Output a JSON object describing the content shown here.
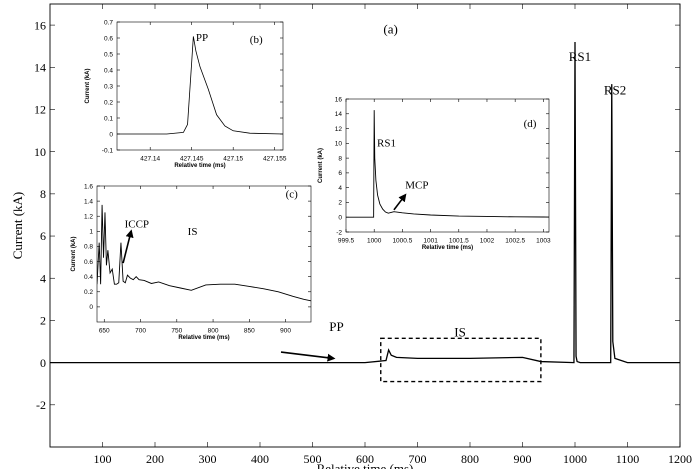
{
  "chart_data": [
    {
      "type": "line",
      "panel": "(a)",
      "xlabel": "Relative time (ms)",
      "ylabel": "Current  (kA)",
      "xlim": [
        0,
        1200
      ],
      "ylim": [
        -4,
        17
      ],
      "xticks": [
        100,
        200,
        300,
        400,
        500,
        600,
        700,
        800,
        900,
        1000,
        1100,
        1200
      ],
      "yticks": [
        -2,
        0,
        2,
        4,
        6,
        8,
        10,
        12,
        14,
        16
      ],
      "grid": false,
      "series": [
        {
          "x": [
            0,
            100,
            200,
            300,
            400,
            500,
            600,
            640,
            645,
            650,
            660,
            700,
            800,
            900,
            935,
            998,
            1000,
            1002,
            1004,
            1010,
            1050,
            1068,
            1070,
            1072,
            1076,
            1100,
            1200
          ],
          "y": [
            0,
            0,
            0,
            0,
            0,
            0,
            0,
            0.1,
            0.6,
            0.35,
            0.25,
            0.2,
            0.2,
            0.25,
            0.05,
            0,
            15.2,
            0.3,
            0.05,
            0,
            0,
            0,
            13.2,
            1.0,
            0.2,
            0,
            0
          ]
        }
      ],
      "annotations": [
        {
          "text": "(a)",
          "x": 635,
          "y": 15.6
        },
        {
          "text": "RS1",
          "x": 988,
          "y": 14.3
        },
        {
          "text": "RS2",
          "x": 1055,
          "y": 12.7
        },
        {
          "text": "PP",
          "x": 532,
          "y": 1.5,
          "arrow_to": [
            540,
            0.2
          ],
          "arrow_from": [
            440,
            0.5
          ]
        },
        {
          "text": "IS",
          "x": 770,
          "y": 1.25
        }
      ],
      "box": {
        "x": [
          630,
          935
        ],
        "y": [
          -0.9,
          1.15
        ],
        "style": "dashed"
      }
    },
    {
      "type": "line",
      "panel": "(b)",
      "xlabel": "Relative time (ms)",
      "ylabel": "Current (kA)",
      "xlim": [
        427.136,
        427.156
      ],
      "ylim": [
        -0.1,
        0.7
      ],
      "xticks": [
        427.14,
        427.145,
        427.15,
        427.155
      ],
      "yticks": [
        -0.1,
        0,
        0.1,
        0.2,
        0.3,
        0.4,
        0.5,
        0.6,
        0.7
      ],
      "series": [
        {
          "x": [
            427.136,
            427.142,
            427.144,
            427.1445,
            427.145,
            427.1452,
            427.1455,
            427.146,
            427.1465,
            427.147,
            427.1475,
            427.148,
            427.149,
            427.15,
            427.152,
            427.156
          ],
          "y": [
            0,
            0,
            0.01,
            0.06,
            0.45,
            0.61,
            0.52,
            0.42,
            0.35,
            0.28,
            0.2,
            0.12,
            0.05,
            0.02,
            0.005,
            0
          ]
        }
      ],
      "annotations": [
        {
          "text": "PP",
          "x": 427.1455,
          "y": 0.58
        },
        {
          "text": "(b)",
          "x": 427.152,
          "y": 0.57
        }
      ]
    },
    {
      "type": "line",
      "panel": "(c)",
      "xlabel": "Relative time (ms)",
      "ylabel": "Current (kA)",
      "xlim": [
        640,
        935
      ],
      "ylim": [
        -0.2,
        1.6
      ],
      "xticks": [
        650,
        700,
        750,
        800,
        850,
        900
      ],
      "yticks": [
        0,
        0.2,
        0.4,
        0.6,
        0.8,
        1.0,
        1.2,
        1.4,
        1.6
      ],
      "series": [
        {
          "x": [
            640,
            643,
            645,
            647,
            649,
            651,
            653,
            655,
            658,
            661,
            664,
            667,
            670,
            673,
            676,
            679,
            682,
            686,
            690,
            694,
            698,
            705,
            715,
            725,
            740,
            755,
            770,
            790,
            810,
            830,
            850,
            870,
            890,
            910,
            925,
            935
          ],
          "y": [
            0.3,
            0.85,
            0.3,
            1.35,
            0.65,
            1.25,
            0.55,
            0.75,
            0.45,
            0.5,
            0.3,
            0.3,
            0.32,
            0.85,
            0.34,
            0.32,
            0.42,
            0.38,
            0.36,
            0.4,
            0.36,
            0.35,
            0.31,
            0.33,
            0.28,
            0.25,
            0.22,
            0.29,
            0.3,
            0.3,
            0.27,
            0.24,
            0.2,
            0.14,
            0.1,
            0.08
          ]
        }
      ],
      "annotations": [
        {
          "text": "ICCP",
          "x": 678,
          "y": 1.05,
          "arrow_to": [
            687,
            1.0
          ],
          "arrow_from": [
            676,
            0.58
          ]
        },
        {
          "text": "IS",
          "x": 765,
          "y": 0.95
        },
        {
          "text": "(c)",
          "x": 900,
          "y": 1.45
        }
      ]
    },
    {
      "type": "line",
      "panel": "(d)",
      "xlabel": "Relative time (ms)",
      "ylabel": "Current (kA)",
      "xlim": [
        999.5,
        1003.1
      ],
      "ylim": [
        -2,
        16
      ],
      "xticks": [
        999.5,
        1000,
        1000.5,
        1001,
        1001.5,
        1002,
        1002.5,
        1003
      ],
      "yticks": [
        -2,
        0,
        2,
        4,
        6,
        8,
        10,
        12,
        14,
        16
      ],
      "series": [
        {
          "x": [
            999.5,
            999.99,
            1000.0,
            1000.01,
            1000.03,
            1000.06,
            1000.1,
            1000.15,
            1000.2,
            1000.25,
            1000.3,
            1000.35,
            1000.4,
            1000.5,
            1000.7,
            1001.0,
            1001.5,
            1002.0,
            1002.5,
            1003.0,
            1003.1
          ],
          "y": [
            0,
            0,
            14.5,
            8.0,
            5.0,
            3.0,
            1.8,
            1.1,
            0.7,
            0.55,
            0.65,
            0.75,
            0.7,
            0.6,
            0.45,
            0.3,
            0.15,
            0.1,
            0.05,
            0.03,
            0.02
          ]
        }
      ],
      "annotations": [
        {
          "text": "RS1",
          "x": 1000.05,
          "y": 9.6
        },
        {
          "text": "MCP",
          "x": 1000.55,
          "y": 3.9,
          "arrow_to": [
            1000.55,
            3.0
          ],
          "arrow_from": [
            1000.35,
            1.0
          ]
        },
        {
          "text": "(d)",
          "x": 1002.65,
          "y": 12.2
        }
      ]
    }
  ]
}
